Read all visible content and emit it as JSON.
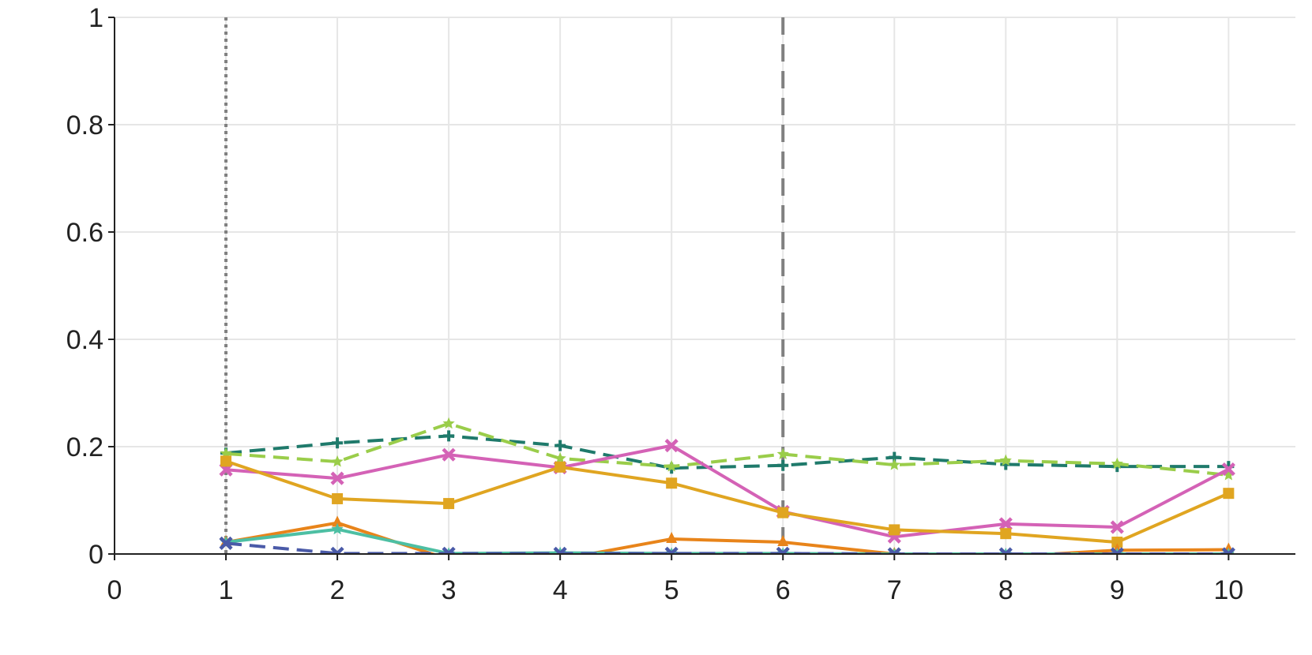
{
  "chart_data": {
    "type": "line",
    "title": "",
    "xlabel": "",
    "ylabel": "",
    "xlim": [
      0,
      10.6
    ],
    "ylim": [
      0,
      1
    ],
    "x_ticks": [
      "0",
      "1",
      "2",
      "3",
      "4",
      "5",
      "6",
      "7",
      "8",
      "9",
      "10"
    ],
    "y_ticks": [
      "0",
      "0.2",
      "0.4",
      "0.6",
      "0.8",
      "1"
    ],
    "grid": true,
    "legend": "none",
    "reference_lines": [
      {
        "x": 1,
        "style": "dotted",
        "color": "#808080"
      },
      {
        "x": 6,
        "style": "dashed",
        "color": "#808080"
      }
    ],
    "series": [
      {
        "color": "#1f7a6b",
        "dash": "dashed",
        "marker": "plus",
        "x": [
          1,
          2,
          3,
          4,
          5,
          6,
          7,
          8,
          9,
          10
        ],
        "values": [
          0.188,
          0.207,
          0.22,
          0.202,
          0.16,
          0.165,
          0.18,
          0.167,
          0.163,
          0.163
        ]
      },
      {
        "color": "#9acd4a",
        "dash": "dashed",
        "marker": "star",
        "x": [
          1,
          2,
          3,
          4,
          5,
          6,
          7,
          8,
          9,
          10
        ],
        "values": [
          0.187,
          0.172,
          0.243,
          0.178,
          0.163,
          0.186,
          0.166,
          0.174,
          0.168,
          0.147
        ]
      },
      {
        "color": "#d462b6",
        "dash": "solid",
        "marker": "x",
        "x": [
          1,
          2,
          3,
          4,
          5,
          6,
          7,
          8,
          9,
          10
        ],
        "values": [
          0.157,
          0.141,
          0.185,
          0.161,
          0.202,
          0.079,
          0.032,
          0.056,
          0.05,
          0.158
        ]
      },
      {
        "color": "#e0a521",
        "dash": "solid",
        "marker": "square",
        "x": [
          1,
          2,
          3,
          4,
          5,
          6,
          7,
          8,
          9,
          10
        ],
        "values": [
          0.173,
          0.103,
          0.094,
          0.162,
          0.132,
          0.077,
          0.045,
          0.038,
          0.022,
          0.113
        ]
      },
      {
        "color": "#e8841a",
        "dash": "solid",
        "marker": "triangle",
        "x": [
          1,
          2,
          3,
          4,
          5,
          6,
          7,
          8,
          9,
          10
        ],
        "values": [
          0.022,
          0.058,
          -0.01,
          -0.01,
          0.028,
          0.022,
          0.0,
          -0.005,
          0.007,
          0.008
        ]
      },
      {
        "color": "#4dbfa3",
        "dash": "solid",
        "marker": "star",
        "x": [
          1,
          2,
          3,
          4,
          5,
          6,
          7,
          8,
          9,
          10
        ],
        "values": [
          0.022,
          0.046,
          0.001,
          0.002,
          0.001,
          0.001,
          0.0,
          0.0,
          0.0,
          0.0
        ]
      },
      {
        "color": "#4a5aa8",
        "dash": "dashed",
        "marker": "x",
        "x": [
          1,
          2,
          3,
          4,
          5,
          6,
          7,
          8,
          9,
          10
        ],
        "values": [
          0.02,
          0.001,
          0.001,
          0.001,
          0.001,
          0.001,
          0.0,
          0.0,
          0.0,
          0.0
        ]
      }
    ]
  }
}
